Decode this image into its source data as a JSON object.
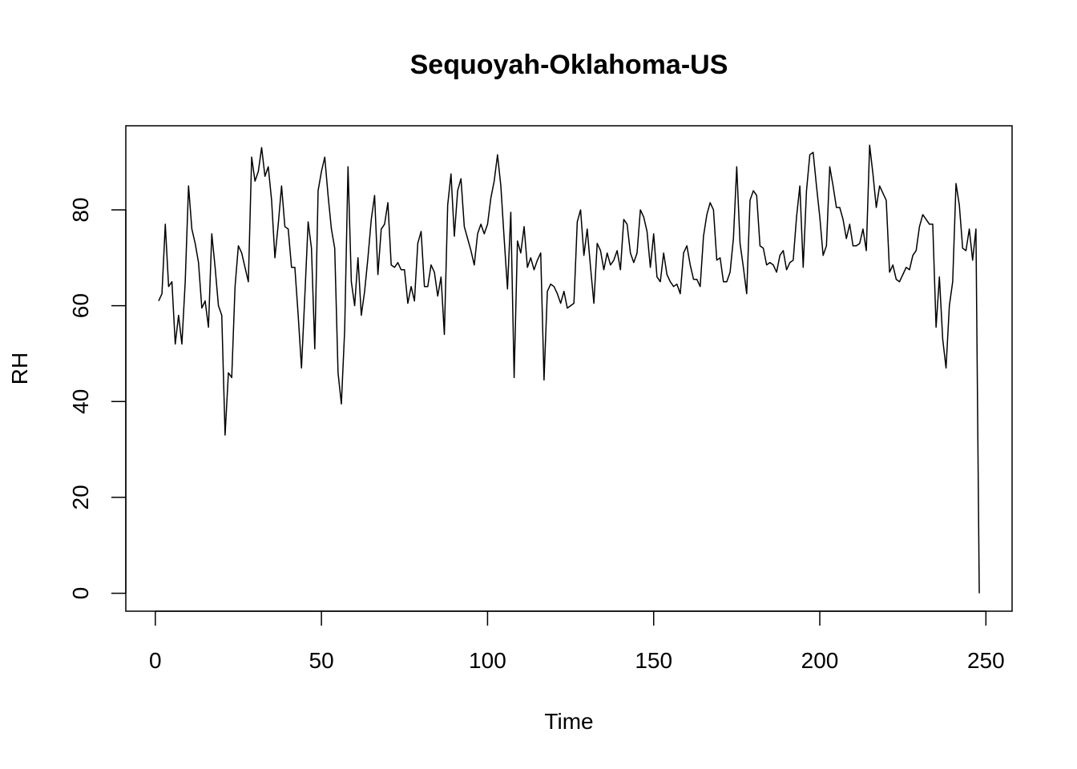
{
  "chart_data": {
    "type": "line",
    "title": "Sequoyah-Oklahoma-US",
    "x_label": "Time",
    "y_label": "RH",
    "x": [
      1,
      2,
      3,
      4,
      5,
      6,
      7,
      8,
      9,
      10,
      11,
      12,
      13,
      14,
      15,
      16,
      17,
      18,
      19,
      20,
      21,
      22,
      23,
      24,
      25,
      26,
      27,
      28,
      29,
      30,
      31,
      32,
      33,
      34,
      35,
      36,
      37,
      38,
      39,
      40,
      41,
      42,
      43,
      44,
      45,
      46,
      47,
      48,
      49,
      50,
      51,
      52,
      53,
      54,
      55,
      56,
      57,
      58,
      59,
      60,
      61,
      62,
      63,
      64,
      65,
      66,
      67,
      68,
      69,
      70,
      71,
      72,
      73,
      74,
      75,
      76,
      77,
      78,
      79,
      80,
      81,
      82,
      83,
      84,
      85,
      86,
      87,
      88,
      89,
      90,
      91,
      92,
      93,
      94,
      95,
      96,
      97,
      98,
      99,
      100,
      101,
      102,
      103,
      104,
      105,
      106,
      107,
      108,
      109,
      110,
      111,
      112,
      113,
      114,
      115,
      116,
      117,
      118,
      119,
      120,
      121,
      122,
      123,
      124,
      125,
      126,
      127,
      128,
      129,
      130,
      131,
      132,
      133,
      134,
      135,
      136,
      137,
      138,
      139,
      140,
      141,
      142,
      143,
      144,
      145,
      146,
      147,
      148,
      149,
      150,
      151,
      152,
      153,
      154,
      155,
      156,
      157,
      158,
      159,
      160,
      161,
      162,
      163,
      164,
      165,
      166,
      167,
      168,
      169,
      170,
      171,
      172,
      173,
      174,
      175,
      176,
      177,
      178,
      179,
      180,
      181,
      182,
      183,
      184,
      185,
      186,
      187,
      188,
      189,
      190,
      191,
      192,
      193,
      194,
      195,
      196,
      197,
      198,
      199,
      200,
      201,
      202,
      203,
      204,
      205,
      206,
      207,
      208,
      209,
      210,
      211,
      212,
      213,
      214,
      215,
      216,
      217,
      218,
      219,
      220,
      221,
      222,
      223,
      224,
      225,
      226,
      227,
      228,
      229,
      230,
      231,
      232,
      233,
      234,
      235,
      236,
      237,
      238,
      239,
      240,
      241,
      242,
      243,
      244,
      245,
      246,
      247,
      248
    ],
    "series": [
      {
        "name": "RH",
        "color": "#000000",
        "values": [
          61,
          62.5,
          77,
          64,
          65,
          52,
          58,
          52,
          65,
          85,
          76,
          73,
          69,
          59.5,
          61,
          55.5,
          75,
          68,
          60,
          58,
          33,
          46,
          45,
          64,
          72.5,
          71,
          68,
          65,
          91,
          86,
          88,
          93,
          87,
          89,
          82,
          70,
          77,
          85,
          76.5,
          76,
          68,
          68,
          58,
          47,
          62,
          77.5,
          72,
          51,
          84,
          88,
          91,
          83,
          76,
          72,
          46,
          39.5,
          55,
          89,
          65,
          60,
          70,
          58,
          63,
          70,
          78,
          83,
          66.5,
          76,
          77,
          81.5,
          68.5,
          68,
          69,
          67.5,
          67.5,
          60.5,
          64,
          61,
          73,
          75.5,
          64,
          64,
          68.5,
          67,
          62,
          66,
          54,
          81,
          87.5,
          74.5,
          84,
          86.5,
          76.5,
          74,
          71.5,
          68.5,
          75,
          77,
          75,
          77,
          82.5,
          86,
          91.5,
          85,
          74,
          63.5,
          79.5,
          45,
          73.5,
          71,
          76.5,
          68,
          70,
          67.5,
          69.5,
          71,
          44.5,
          63,
          64.5,
          64,
          62.5,
          60.5,
          63,
          59.5,
          60,
          60.5,
          77.5,
          80,
          70.5,
          76,
          68,
          60.5,
          73,
          71.5,
          67.5,
          71,
          68.5,
          69.5,
          71.5,
          67.5,
          78,
          77,
          71,
          69,
          71,
          80,
          78.5,
          75.5,
          68,
          75,
          66,
          65,
          71,
          66.5,
          65,
          64,
          64.5,
          62.5,
          71,
          72.5,
          68.5,
          65.5,
          65.5,
          64,
          74.5,
          79,
          81.5,
          80,
          69.5,
          70,
          65,
          65,
          67,
          74,
          89,
          73,
          68,
          62.5,
          82,
          84,
          83,
          72.5,
          72,
          68.5,
          69,
          68.5,
          67,
          70.5,
          71.5,
          67.5,
          69,
          69.5,
          78.5,
          85,
          68,
          84,
          91.5,
          92,
          85,
          78.5,
          70.5,
          72.5,
          89,
          85,
          80.5,
          80.5,
          78,
          74,
          77,
          72.5,
          72.5,
          73,
          76,
          71.5,
          93.5,
          87.5,
          80.5,
          85,
          83.5,
          82,
          67,
          68.5,
          65.5,
          65,
          66.5,
          68,
          67.5,
          70.5,
          71.5,
          76.5,
          79,
          78,
          77,
          77,
          55.5,
          66,
          53,
          47,
          60,
          65,
          85.5,
          81,
          72,
          71.5,
          76,
          69.5,
          76,
          0
        ]
      }
    ],
    "xlim": [
      -8.88,
      257.88
    ],
    "xticks": [
      0,
      50,
      100,
      150,
      200,
      250
    ],
    "ylim": [
      -3.75,
      97.55
    ],
    "yticks": [
      0,
      20,
      40,
      60,
      80
    ]
  }
}
